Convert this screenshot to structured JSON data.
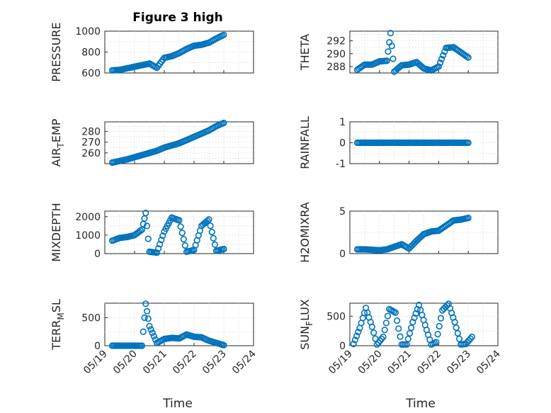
{
  "figure": {
    "title": "Figure 3 high",
    "xlabel": "Time"
  },
  "colors": {
    "marker": "#0072BD",
    "axis": "#262626",
    "grid": "#d7d7d7"
  },
  "chart_data": [
    {
      "id": "pressure",
      "type": "scatter",
      "title": "Figure 3 high",
      "ylabel": "PRESSURE",
      "ylim": [
        600,
        1000
      ],
      "yticks": [
        600,
        800,
        1000
      ],
      "yticklabels": [
        "600",
        "800",
        "1000"
      ],
      "x": [
        "05/19 06:00",
        "05/19 12:00",
        "05/19 18:00",
        "05/20 00:00",
        "05/20 06:00",
        "05/20 12:00",
        "05/20 18:00",
        "05/21 00:00",
        "05/21 06:00",
        "05/21 12:00",
        "05/21 18:00",
        "05/22 00:00",
        "05/22 06:00",
        "05/22 12:00",
        "05/22 18:00",
        "05/23 00:00"
      ],
      "values": [
        625,
        630,
        645,
        660,
        675,
        690,
        650,
        745,
        760,
        790,
        830,
        860,
        870,
        890,
        930,
        965
      ]
    },
    {
      "id": "theta",
      "type": "scatter",
      "ylabel": "THETA",
      "ylim": [
        287,
        293.5
      ],
      "yticks": [
        288,
        290,
        292
      ],
      "yticklabels": [
        "288",
        "290",
        "292"
      ],
      "x": [
        "05/19 06:00",
        "05/19 12:00",
        "05/19 18:00",
        "05/20 00:00",
        "05/20 06:00",
        "05/20 09:00",
        "05/20 12:00",
        "05/20 18:00",
        "05/21 00:00",
        "05/21 06:00",
        "05/21 12:00",
        "05/21 18:00",
        "05/22 00:00",
        "05/22 06:00",
        "05/22 12:00",
        "05/22 18:00",
        "05/23 00:00"
      ],
      "values": [
        287.5,
        288.3,
        288.3,
        288.8,
        288.9,
        293.2,
        287.2,
        288.2,
        288.3,
        288.7,
        287.7,
        287.4,
        288.0,
        290.9,
        291.0,
        290.2,
        289.4
      ]
    },
    {
      "id": "air_temp",
      "type": "scatter",
      "ylabel": "AIR",
      "ylabel_sub": "T",
      "ylabel_tail": "EMP",
      "ylim": [
        250,
        289
      ],
      "yticks": [
        260,
        270,
        280
      ],
      "yticklabels": [
        "260",
        "270",
        "280"
      ],
      "x": [
        "05/19 06:00",
        "05/19 12:00",
        "05/19 18:00",
        "05/20 00:00",
        "05/20 06:00",
        "05/20 12:00",
        "05/20 18:00",
        "05/21 00:00",
        "05/21 06:00",
        "05/21 12:00",
        "05/21 18:00",
        "05/22 00:00",
        "05/22 06:00",
        "05/22 12:00",
        "05/22 18:00",
        "05/23 00:00"
      ],
      "values": [
        251,
        252.5,
        254,
        256,
        258,
        260,
        262,
        265,
        267,
        269,
        272,
        275,
        278,
        281,
        285,
        288
      ]
    },
    {
      "id": "rainfall",
      "type": "scatter",
      "ylabel": "RAINFALL",
      "ylim": [
        -1,
        1
      ],
      "yticks": [
        -1,
        0,
        1
      ],
      "yticklabels": [
        "-1",
        "0",
        "1"
      ],
      "x": [
        "05/19 06:00",
        "05/20 00:00",
        "05/20 18:00",
        "05/21 12:00",
        "05/22 06:00",
        "05/23 00:00"
      ],
      "values": [
        0,
        0,
        0,
        0,
        0,
        0
      ]
    },
    {
      "id": "mixdepth",
      "type": "scatter",
      "ylabel": "MIXDEPTH",
      "ylim": [
        0,
        2300
      ],
      "yticks": [
        0,
        1000,
        2000
      ],
      "yticklabels": [
        "0",
        "1000",
        "2000"
      ],
      "x": [
        "05/19 06:00",
        "05/19 12:00",
        "05/19 18:00",
        "05/20 00:00",
        "05/20 06:00",
        "05/20 09:00",
        "05/20 12:00",
        "05/20 18:00",
        "05/21 00:00",
        "05/21 06:00",
        "05/21 12:00",
        "05/21 18:00",
        "05/22 00:00",
        "05/22 06:00",
        "05/22 12:00",
        "05/22 18:00",
        "05/23 00:00"
      ],
      "values": [
        700,
        850,
        900,
        1000,
        1300,
        2200,
        100,
        50,
        1200,
        1950,
        1800,
        100,
        200,
        1500,
        1850,
        150,
        250
      ]
    },
    {
      "id": "h2omixra",
      "type": "scatter",
      "ylabel": "H2OMIXRA",
      "ylim": [
        0,
        5
      ],
      "yticks": [
        0,
        5
      ],
      "yticklabels": [
        "0",
        "5"
      ],
      "x": [
        "05/19 06:00",
        "05/19 12:00",
        "05/19 18:00",
        "05/20 00:00",
        "05/20 06:00",
        "05/20 12:00",
        "05/20 18:00",
        "05/21 00:00",
        "05/21 06:00",
        "05/21 12:00",
        "05/21 18:00",
        "05/22 00:00",
        "05/22 06:00",
        "05/22 12:00",
        "05/22 18:00",
        "05/23 00:00"
      ],
      "values": [
        0.5,
        0.5,
        0.45,
        0.4,
        0.5,
        0.8,
        1.1,
        0.6,
        1.5,
        2.3,
        2.6,
        2.7,
        3.3,
        3.9,
        4.0,
        4.2
      ]
    },
    {
      "id": "terr_msl",
      "type": "scatter",
      "ylabel": "TERR",
      "ylabel_sub": "M",
      "ylabel_tail": "SL",
      "xticklabels": [
        "05/19",
        "05/20",
        "05/21",
        "05/22",
        "05/23",
        "05/24"
      ],
      "xlabel": "Time",
      "ylim": [
        0,
        760
      ],
      "yticks": [
        0,
        500
      ],
      "yticklabels": [
        "0",
        "500"
      ],
      "x": [
        "05/19 06:00",
        "05/19 12:00",
        "05/19 18:00",
        "05/20 00:00",
        "05/20 06:00",
        "05/20 09:00",
        "05/20 12:00",
        "05/20 18:00",
        "05/21 00:00",
        "05/21 06:00",
        "05/21 12:00",
        "05/21 18:00",
        "05/22 00:00",
        "05/22 06:00",
        "05/22 12:00",
        "05/22 18:00",
        "05/23 00:00"
      ],
      "values": [
        0,
        0,
        0,
        0,
        0,
        750,
        350,
        50,
        120,
        140,
        130,
        200,
        160,
        150,
        90,
        50,
        10
      ]
    },
    {
      "id": "sun_flux",
      "type": "scatter",
      "ylabel": "SUN",
      "ylabel_sub": "F",
      "ylabel_tail": "LUX",
      "xticklabels": [
        "05/19",
        "05/20",
        "05/21",
        "05/22",
        "05/23",
        "05/24"
      ],
      "xlabel": "Time",
      "ylim": [
        0,
        720
      ],
      "yticks": [
        0,
        500
      ],
      "yticklabels": [
        "0",
        "500"
      ],
      "x": [
        "05/19 03:00",
        "05/19 08:00",
        "05/19 13:00",
        "05/19 18:00",
        "05/19 22:00",
        "05/20 03:00",
        "05/20 08:00",
        "05/20 13:00",
        "05/20 18:00",
        "05/20 22:00",
        "05/21 03:00",
        "05/21 08:00",
        "05/21 13:00",
        "05/21 18:00",
        "05/21 22:00",
        "05/22 03:00",
        "05/22 08:00",
        "05/22 13:00",
        "05/22 18:00",
        "05/22 22:00",
        "05/23 03:00"
      ],
      "values": [
        30,
        300,
        640,
        320,
        20,
        150,
        620,
        560,
        20,
        20,
        400,
        690,
        350,
        20,
        60,
        600,
        710,
        400,
        20,
        30,
        150
      ]
    }
  ]
}
